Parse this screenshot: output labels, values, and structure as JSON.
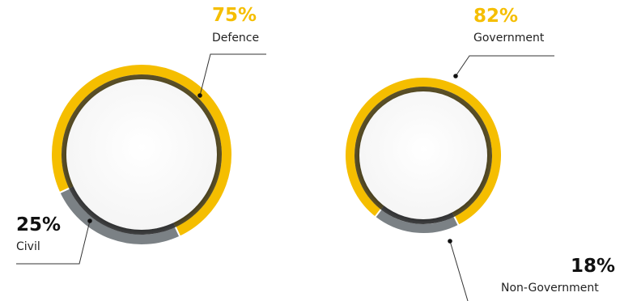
{
  "chart_data": [
    {
      "type": "pie",
      "variant": "donut",
      "slices": [
        {
          "label": "Defence",
          "value": 75,
          "value_label": "75%",
          "color": "#F5BE00"
        },
        {
          "label": "Civil",
          "value": 25,
          "value_label": "25%",
          "color": "#7B8185"
        }
      ]
    },
    {
      "type": "pie",
      "variant": "donut",
      "slices": [
        {
          "label": "Government",
          "value": 82,
          "value_label": "82%",
          "color": "#F5BE00"
        },
        {
          "label": "Non-Government",
          "value": 18,
          "value_label": "18%",
          "color": "#7B8185"
        }
      ]
    }
  ],
  "label_colors": {
    "highlight": "#F5BE00",
    "dark": "#111111"
  }
}
